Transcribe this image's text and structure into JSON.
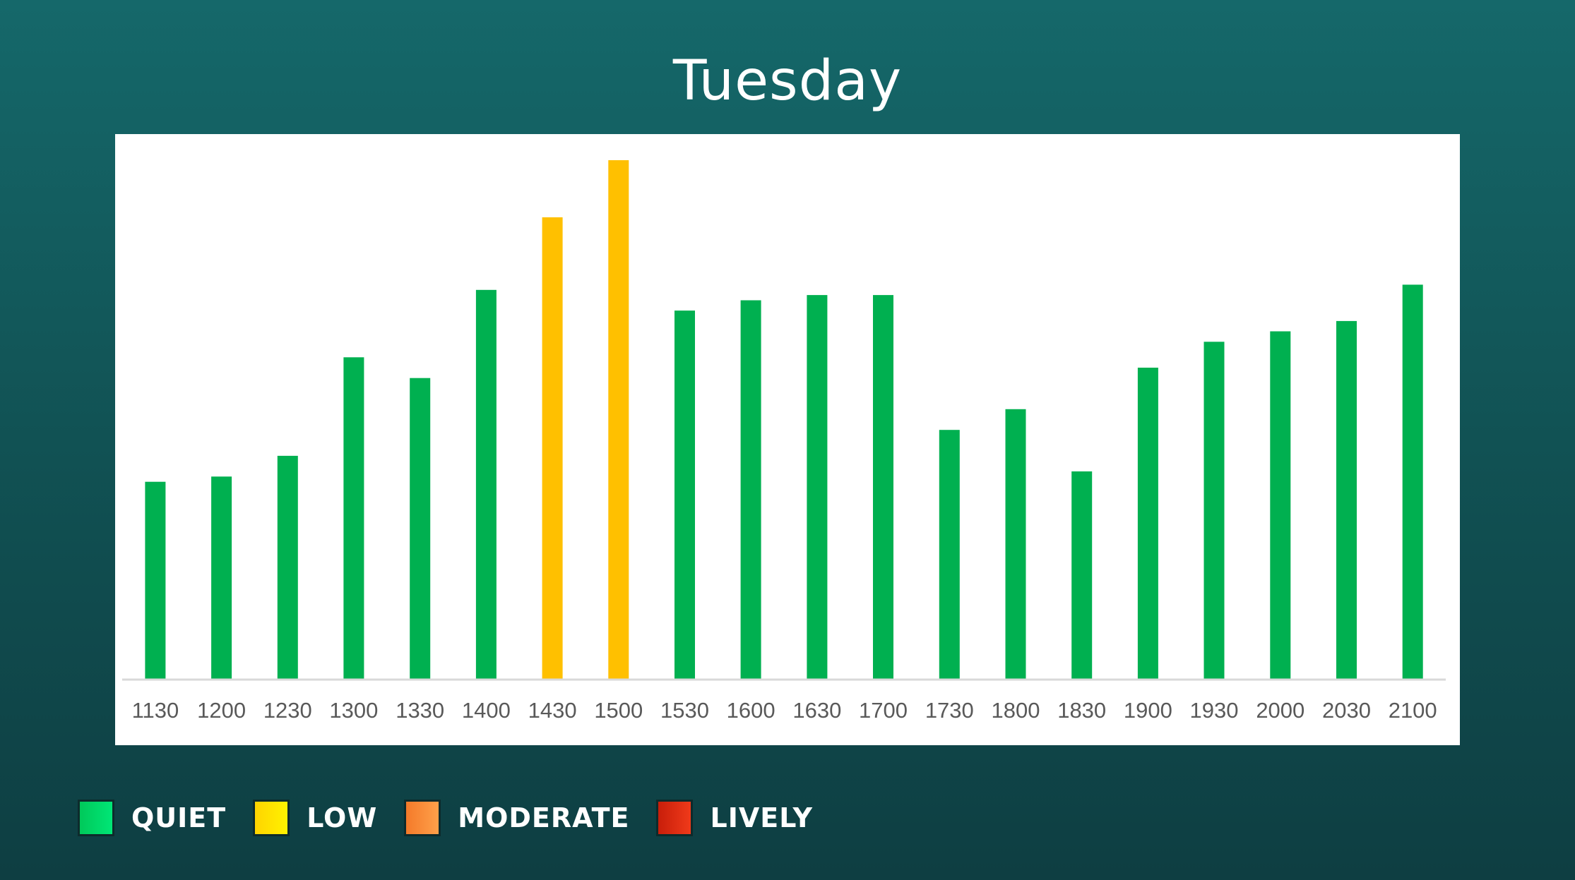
{
  "chart_data": {
    "type": "bar",
    "title": "Tuesday",
    "categories": [
      "1130",
      "1200",
      "1230",
      "1300",
      "1330",
      "1400",
      "1430",
      "1500",
      "1530",
      "1600",
      "1630",
      "1700",
      "1730",
      "1800",
      "1830",
      "1900",
      "1930",
      "2000",
      "2030",
      "2100"
    ],
    "values": [
      38,
      39,
      43,
      62,
      58,
      75,
      89,
      100,
      71,
      73,
      74,
      74,
      48,
      52,
      40,
      60,
      65,
      67,
      69,
      76
    ],
    "levels": [
      "QUIET",
      "QUIET",
      "QUIET",
      "QUIET",
      "QUIET",
      "QUIET",
      "LOW",
      "LOW",
      "QUIET",
      "QUIET",
      "QUIET",
      "QUIET",
      "QUIET",
      "QUIET",
      "QUIET",
      "QUIET",
      "QUIET",
      "QUIET",
      "QUIET",
      "QUIET"
    ],
    "ylim": [
      0,
      100
    ],
    "grid": false,
    "legend_placement": "bottom-left"
  },
  "legend": [
    {
      "label": "QUIET",
      "color": "#00b050",
      "gradient": [
        "#00c95a",
        "#00e676"
      ]
    },
    {
      "label": "LOW",
      "color": "#ffc000",
      "gradient": [
        "#ffd400",
        "#fff200"
      ]
    },
    {
      "label": "MODERATE",
      "color": "#f58634",
      "gradient": [
        "#f47a2a",
        "#ffa04a"
      ]
    },
    {
      "label": "LIVELY",
      "color": "#d9260f",
      "gradient": [
        "#c81e0a",
        "#f03a1a"
      ]
    }
  ],
  "colors": {
    "QUIET": "#00b050",
    "LOW": "#ffc000",
    "MODERATE": "#f58634",
    "LIVELY": "#d9260f",
    "axis": "#d9d9d9",
    "tick": "#595959"
  }
}
